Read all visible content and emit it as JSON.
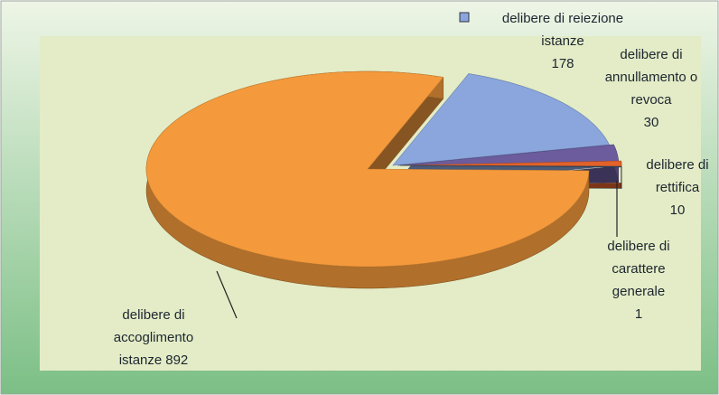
{
  "chart_data": {
    "type": "pie3d",
    "categories": [
      "delibere di reiezione istanze",
      "delibere di annullamento o revoca",
      "delibere di rettifica",
      "delibere di carattere generale",
      "delibere di accoglimento istanze"
    ],
    "values": [
      178,
      30,
      10,
      1,
      892
    ],
    "colors": [
      "#8aa6dc",
      "#6c5c9e",
      "#e2622a",
      "#2c4c6c",
      "#f49a3c"
    ]
  }
}
